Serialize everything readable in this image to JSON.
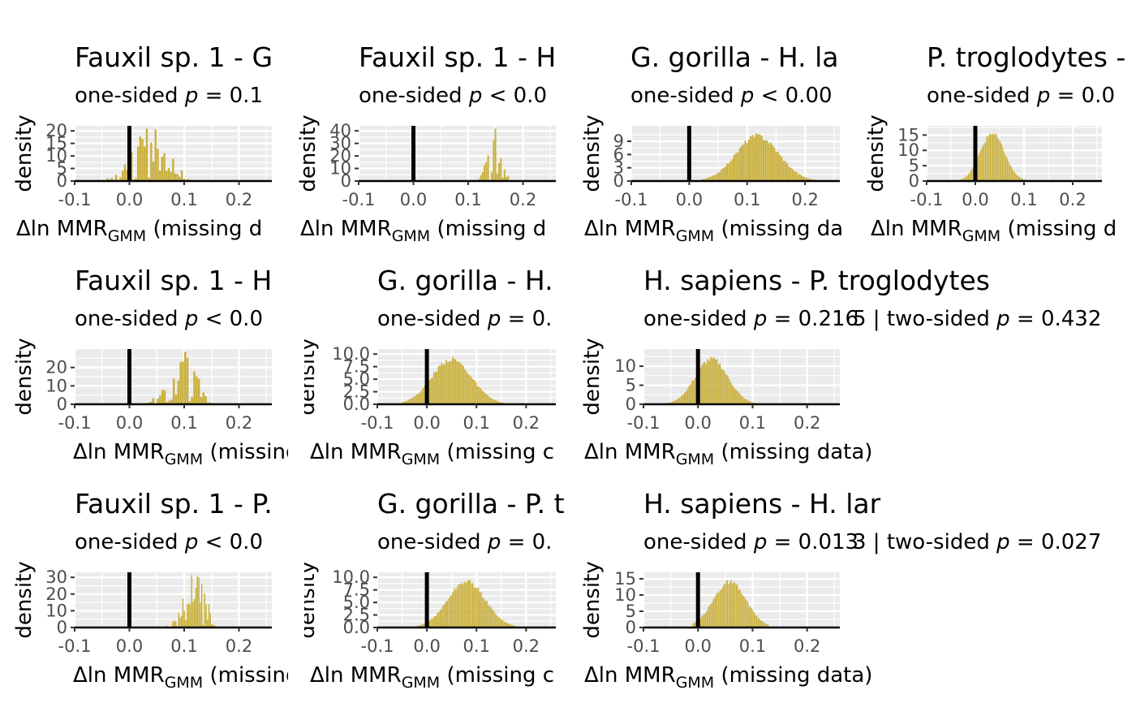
{
  "figure": {
    "accent_color": "#C9AF3A",
    "panel_background": "#EBEBEB",
    "vline_color": "#000000"
  },
  "chart_data": [
    {
      "type": "histogram",
      "title": "Fauxil sp. 1 - G",
      "subtitle_prefix": "one-sided",
      "subtitle_op": "=",
      "subtitle_value": "0.1",
      "xlabel_pre": "Δln MMR",
      "xlabel_sub": "GMM",
      "xlabel_post": " (missing d",
      "ylabel": "density",
      "xlim": [
        -0.1,
        0.26
      ],
      "xticks": [
        "-0.1",
        "0.0",
        "0.1",
        "0.2"
      ],
      "ylim": [
        0,
        22
      ],
      "yticks": [
        "0",
        "5",
        "10",
        "15",
        "20"
      ],
      "vline": 0,
      "dist": {
        "mean": 0.04,
        "sd": 0.038,
        "bins": 45,
        "noise": 0.7,
        "min": -0.07,
        "max": 0.11
      }
    },
    {
      "type": "histogram",
      "title": "Fauxil sp. 1 - H",
      "subtitle_prefix": "one-sided",
      "subtitle_op": "<",
      "subtitle_value": "0.0",
      "xlabel_pre": "Δln MMR",
      "xlabel_sub": "GMM",
      "xlabel_post": " (missing d",
      "ylabel": "density",
      "xlim": [
        -0.1,
        0.26
      ],
      "xticks": [
        "-0.1",
        "0.0",
        "0.1",
        "0.2"
      ],
      "ylim": [
        0,
        44
      ],
      "yticks": [
        "0",
        "10",
        "20",
        "30",
        "40"
      ],
      "vline": 0,
      "dist": {
        "mean": 0.148,
        "sd": 0.012,
        "bins": 18,
        "noise": 0.45,
        "min": 0.115,
        "max": 0.175
      }
    },
    {
      "type": "histogram",
      "title": "G. gorilla - H. la",
      "subtitle_prefix": "one-sided",
      "subtitle_op": "<",
      "subtitle_value": "0.00",
      "xlabel_pre": "Δln MMR",
      "xlabel_sub": "GMM",
      "xlabel_post": " (missing da",
      "ylabel": "density",
      "xlim": [
        -0.1,
        0.26
      ],
      "xticks": [
        "-0.1",
        "0.0",
        "0.1",
        "0.2"
      ],
      "ylim": [
        0,
        12.5
      ],
      "yticks": [
        "0",
        "3",
        "6",
        "9"
      ],
      "vline": 0,
      "dist": {
        "mean": 0.118,
        "sd": 0.037,
        "bins": 70,
        "noise": 0.06,
        "min": 0.02,
        "max": 0.24
      }
    },
    {
      "type": "histogram",
      "title": "P. troglodytes -",
      "subtitle_prefix": "one-sided",
      "subtitle_op": "=",
      "subtitle_value": "0.0",
      "xlabel_pre": "Δln MMR",
      "xlabel_sub": "GMM",
      "xlabel_post": " (missing d",
      "ylabel": "density",
      "xlim": [
        -0.1,
        0.26
      ],
      "xticks": [
        "-0.1",
        "0.0",
        "0.1",
        "0.2"
      ],
      "ylim": [
        0,
        18
      ],
      "yticks": [
        "0",
        "5",
        "10",
        "15"
      ],
      "vline": 0,
      "dist": {
        "mean": 0.035,
        "sd": 0.025,
        "bins": 60,
        "noise": 0.05,
        "min": -0.04,
        "max": 0.11
      }
    },
    {
      "type": "histogram",
      "title": "Fauxil sp. 1 - H",
      "subtitle_prefix": "one-sided",
      "subtitle_op": "<",
      "subtitle_value": "0.0",
      "xlabel_pre": "Δln MMR",
      "xlabel_sub": "GMM",
      "xlabel_post": " (missing d",
      "ylabel": "density",
      "xlim": [
        -0.1,
        0.26
      ],
      "xticks": [
        "-0.1",
        "0.0",
        "0.1",
        "0.2"
      ],
      "ylim": [
        0,
        30
      ],
      "yticks": [
        "0",
        "10",
        "20"
      ],
      "vline": 0,
      "dist": {
        "mean": 0.096,
        "sd": 0.026,
        "bins": 30,
        "noise": 0.55,
        "min": 0.025,
        "max": 0.15
      }
    },
    {
      "type": "histogram",
      "title": "G. gorilla - H.",
      "subtitle_prefix": "one-sided",
      "subtitle_op": "=",
      "subtitle_value": "0.",
      "xlabel_pre": "Δln MMR",
      "xlabel_sub": "GMM",
      "xlabel_post": " (missing c",
      "ylabel": "density",
      "xlim": [
        -0.1,
        0.26
      ],
      "xticks": [
        "-0.1",
        "0.0",
        "0.1",
        "0.2"
      ],
      "ylim": [
        0,
        11
      ],
      "yticks": [
        "0.0",
        "2.5",
        "5.0",
        "7.5",
        "10.0"
      ],
      "vline": 0,
      "dist": {
        "mean": 0.05,
        "sd": 0.04,
        "bins": 70,
        "noise": 0.06,
        "min": -0.05,
        "max": 0.17
      }
    },
    {
      "type": "histogram",
      "title": "H. sapiens - P. troglodytes",
      "subtitle_prefix": "one-sided",
      "subtitle_op": "=",
      "subtitle_value": "0.216",
      "subtitle_overlap": "5 | two-sided",
      "subtitle_op2": "=",
      "subtitle_value2": "0.432",
      "xlabel_pre": "Δln MMR",
      "xlabel_sub": "GMM",
      "xlabel_post": " (missing data)",
      "ylabel": "density",
      "xlim": [
        -0.1,
        0.26
      ],
      "xticks": [
        "-0.1",
        "0.0",
        "0.1",
        "0.2"
      ],
      "ylim": [
        0,
        14.5
      ],
      "yticks": [
        "0",
        "5",
        "10"
      ],
      "vline": 0,
      "dist": {
        "mean": 0.025,
        "sd": 0.03,
        "bins": 60,
        "noise": 0.06,
        "min": -0.06,
        "max": 0.11
      }
    },
    {
      "type": "histogram",
      "title": "Fauxil sp. 1 - P.",
      "subtitle_prefix": "one-sided",
      "subtitle_op": "<",
      "subtitle_value": "0.0",
      "xlabel_pre": "Δln MMR",
      "xlabel_sub": "GMM",
      "xlabel_post": " (missing d",
      "ylabel": "density",
      "xlim": [
        -0.1,
        0.26
      ],
      "xticks": [
        "-0.1",
        "0.0",
        "0.1",
        "0.2"
      ],
      "ylim": [
        0,
        33
      ],
      "yticks": [
        "0",
        "10",
        "20",
        "30"
      ],
      "vline": 0,
      "dist": {
        "mean": 0.12,
        "sd": 0.02,
        "bins": 36,
        "noise": 0.4,
        "min": 0.065,
        "max": 0.16
      }
    },
    {
      "type": "histogram",
      "title": "G. gorilla - P. t",
      "subtitle_prefix": "one-sided",
      "subtitle_op": "=",
      "subtitle_value": "0.",
      "xlabel_pre": "Δln MMR",
      "xlabel_sub": "GMM",
      "xlabel_post": " (missing c",
      "ylabel": "density",
      "xlim": [
        -0.1,
        0.26
      ],
      "xticks": [
        "-0.1",
        "0.0",
        "0.1",
        "0.2"
      ],
      "ylim": [
        0,
        11
      ],
      "yticks": [
        "0.0",
        "2.5",
        "5.0",
        "7.5",
        "10.0"
      ],
      "vline": 0,
      "dist": {
        "mean": 0.08,
        "sd": 0.038,
        "bins": 70,
        "noise": 0.06,
        "min": -0.02,
        "max": 0.18
      }
    },
    {
      "type": "histogram",
      "title": "H. sapiens - H. lar",
      "subtitle_prefix": "one-sided",
      "subtitle_op": "=",
      "subtitle_value": "0.013",
      "subtitle_overlap": "3 | two-sided",
      "subtitle_op2": "=",
      "subtitle_value2": "0.027",
      "xlabel_pre": "Δln MMR",
      "xlabel_sub": "GMM",
      "xlabel_post": " (missing data)",
      "ylabel": "density",
      "xlim": [
        -0.1,
        0.26
      ],
      "xticks": [
        "-0.1",
        "0.0",
        "0.1",
        "0.2"
      ],
      "ylim": [
        0,
        17
      ],
      "yticks": [
        "0",
        "5",
        "10",
        "15"
      ],
      "vline": 0,
      "dist": {
        "mean": 0.058,
        "sd": 0.03,
        "bins": 60,
        "noise": 0.06,
        "min": -0.01,
        "max": 0.13
      }
    }
  ]
}
